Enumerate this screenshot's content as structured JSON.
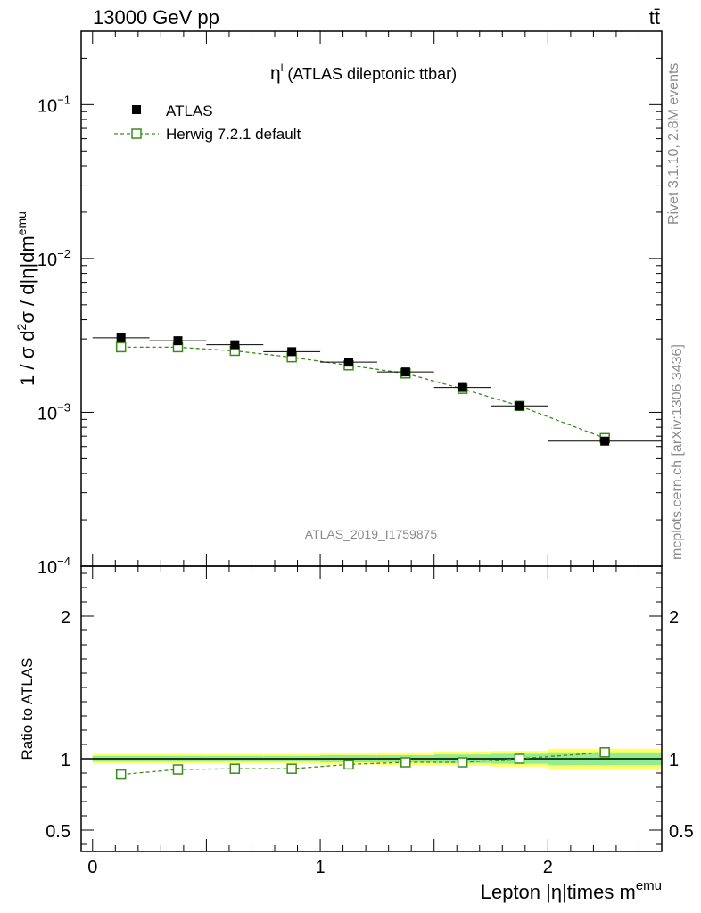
{
  "header": {
    "left": "13000 GeV pp",
    "right": "tt̄"
  },
  "plot_title": {
    "symbol": "η",
    "sup": "l",
    "text": " (ATLAS dileptonic ttbar)"
  },
  "side_labels": {
    "rivet": "Rivet 3.1.10,  2.8M events",
    "mcplots": "mcplots.cern.ch [arXiv:1306.3436]"
  },
  "watermark": "ATLAS_2019_I1759875",
  "colors": {
    "data": "#000000",
    "mc": "#3a8c1a",
    "band_inner": "#90ee90",
    "band_outer": "#ffff66"
  },
  "chart_data": [
    {
      "type": "scatter",
      "panel": "main",
      "yscale": "log",
      "ylim": [
        0.0001,
        0.3
      ],
      "xlim": [
        -0.05,
        2.5
      ],
      "ylabel": {
        "pre": "1 / σ  d",
        "sup1": "2",
        "mid": "σ / d|η|dm",
        "sup2": "emu"
      },
      "yticks": [
        {
          "value": 0.1,
          "base": "10",
          "exp": "−1"
        },
        {
          "value": 0.01,
          "base": "10",
          "exp": "−2"
        },
        {
          "value": 0.001,
          "base": "10",
          "exp": "−3"
        },
        {
          "value": 0.0001,
          "base": "10",
          "exp": "−4"
        }
      ],
      "legend_position": "top-left",
      "series": [
        {
          "name": "ATLAS",
          "style": "data",
          "x": [
            0.125,
            0.375,
            0.625,
            0.875,
            1.125,
            1.375,
            1.625,
            1.875,
            2.25
          ],
          "y": [
            0.00305,
            0.00292,
            0.00275,
            0.00248,
            0.00212,
            0.00183,
            0.00145,
            0.0011,
            0.00065
          ],
          "xerr": [
            0.125,
            0.125,
            0.125,
            0.125,
            0.125,
            0.125,
            0.125,
            0.125,
            0.25
          ]
        },
        {
          "name": "Herwig 7.2.1 default",
          "style": "mc",
          "x": [
            0.125,
            0.375,
            0.625,
            0.875,
            1.125,
            1.375,
            1.625,
            1.875,
            2.25
          ],
          "y": [
            0.00265,
            0.00265,
            0.00251,
            0.00228,
            0.00202,
            0.00179,
            0.00142,
            0.0011,
            0.00068
          ]
        }
      ]
    },
    {
      "type": "line",
      "panel": "ratio",
      "ylim": [
        0.35,
        2.35
      ],
      "xlim": [
        -0.05,
        2.5
      ],
      "ylabel": "Ratio to ATLAS",
      "yticks": [
        0.5,
        1,
        2
      ],
      "ytick_labels": [
        "0.5",
        "1",
        "2"
      ],
      "xlabel": {
        "text": "Lepton |η|times m",
        "sup": "emu"
      },
      "xticks": [
        0,
        1,
        2
      ],
      "xtick_labels": [
        "0",
        "1",
        "2"
      ],
      "band": {
        "x_edges": [
          0,
          0.25,
          0.5,
          0.75,
          1.0,
          1.25,
          1.5,
          1.75,
          2.0,
          2.5
        ],
        "inner": [
          0.02,
          0.02,
          0.02,
          0.02,
          0.025,
          0.025,
          0.03,
          0.035,
          0.045
        ],
        "outer": [
          0.035,
          0.035,
          0.035,
          0.035,
          0.04,
          0.045,
          0.05,
          0.055,
          0.07
        ]
      },
      "series": [
        {
          "name": "Herwig 7.2.1 default",
          "x": [
            0.125,
            0.375,
            0.625,
            0.875,
            1.125,
            1.375,
            1.625,
            1.875,
            2.25
          ],
          "y": [
            0.89,
            0.925,
            0.93,
            0.93,
            0.96,
            0.975,
            0.975,
            1.0,
            1.045
          ]
        }
      ]
    }
  ]
}
